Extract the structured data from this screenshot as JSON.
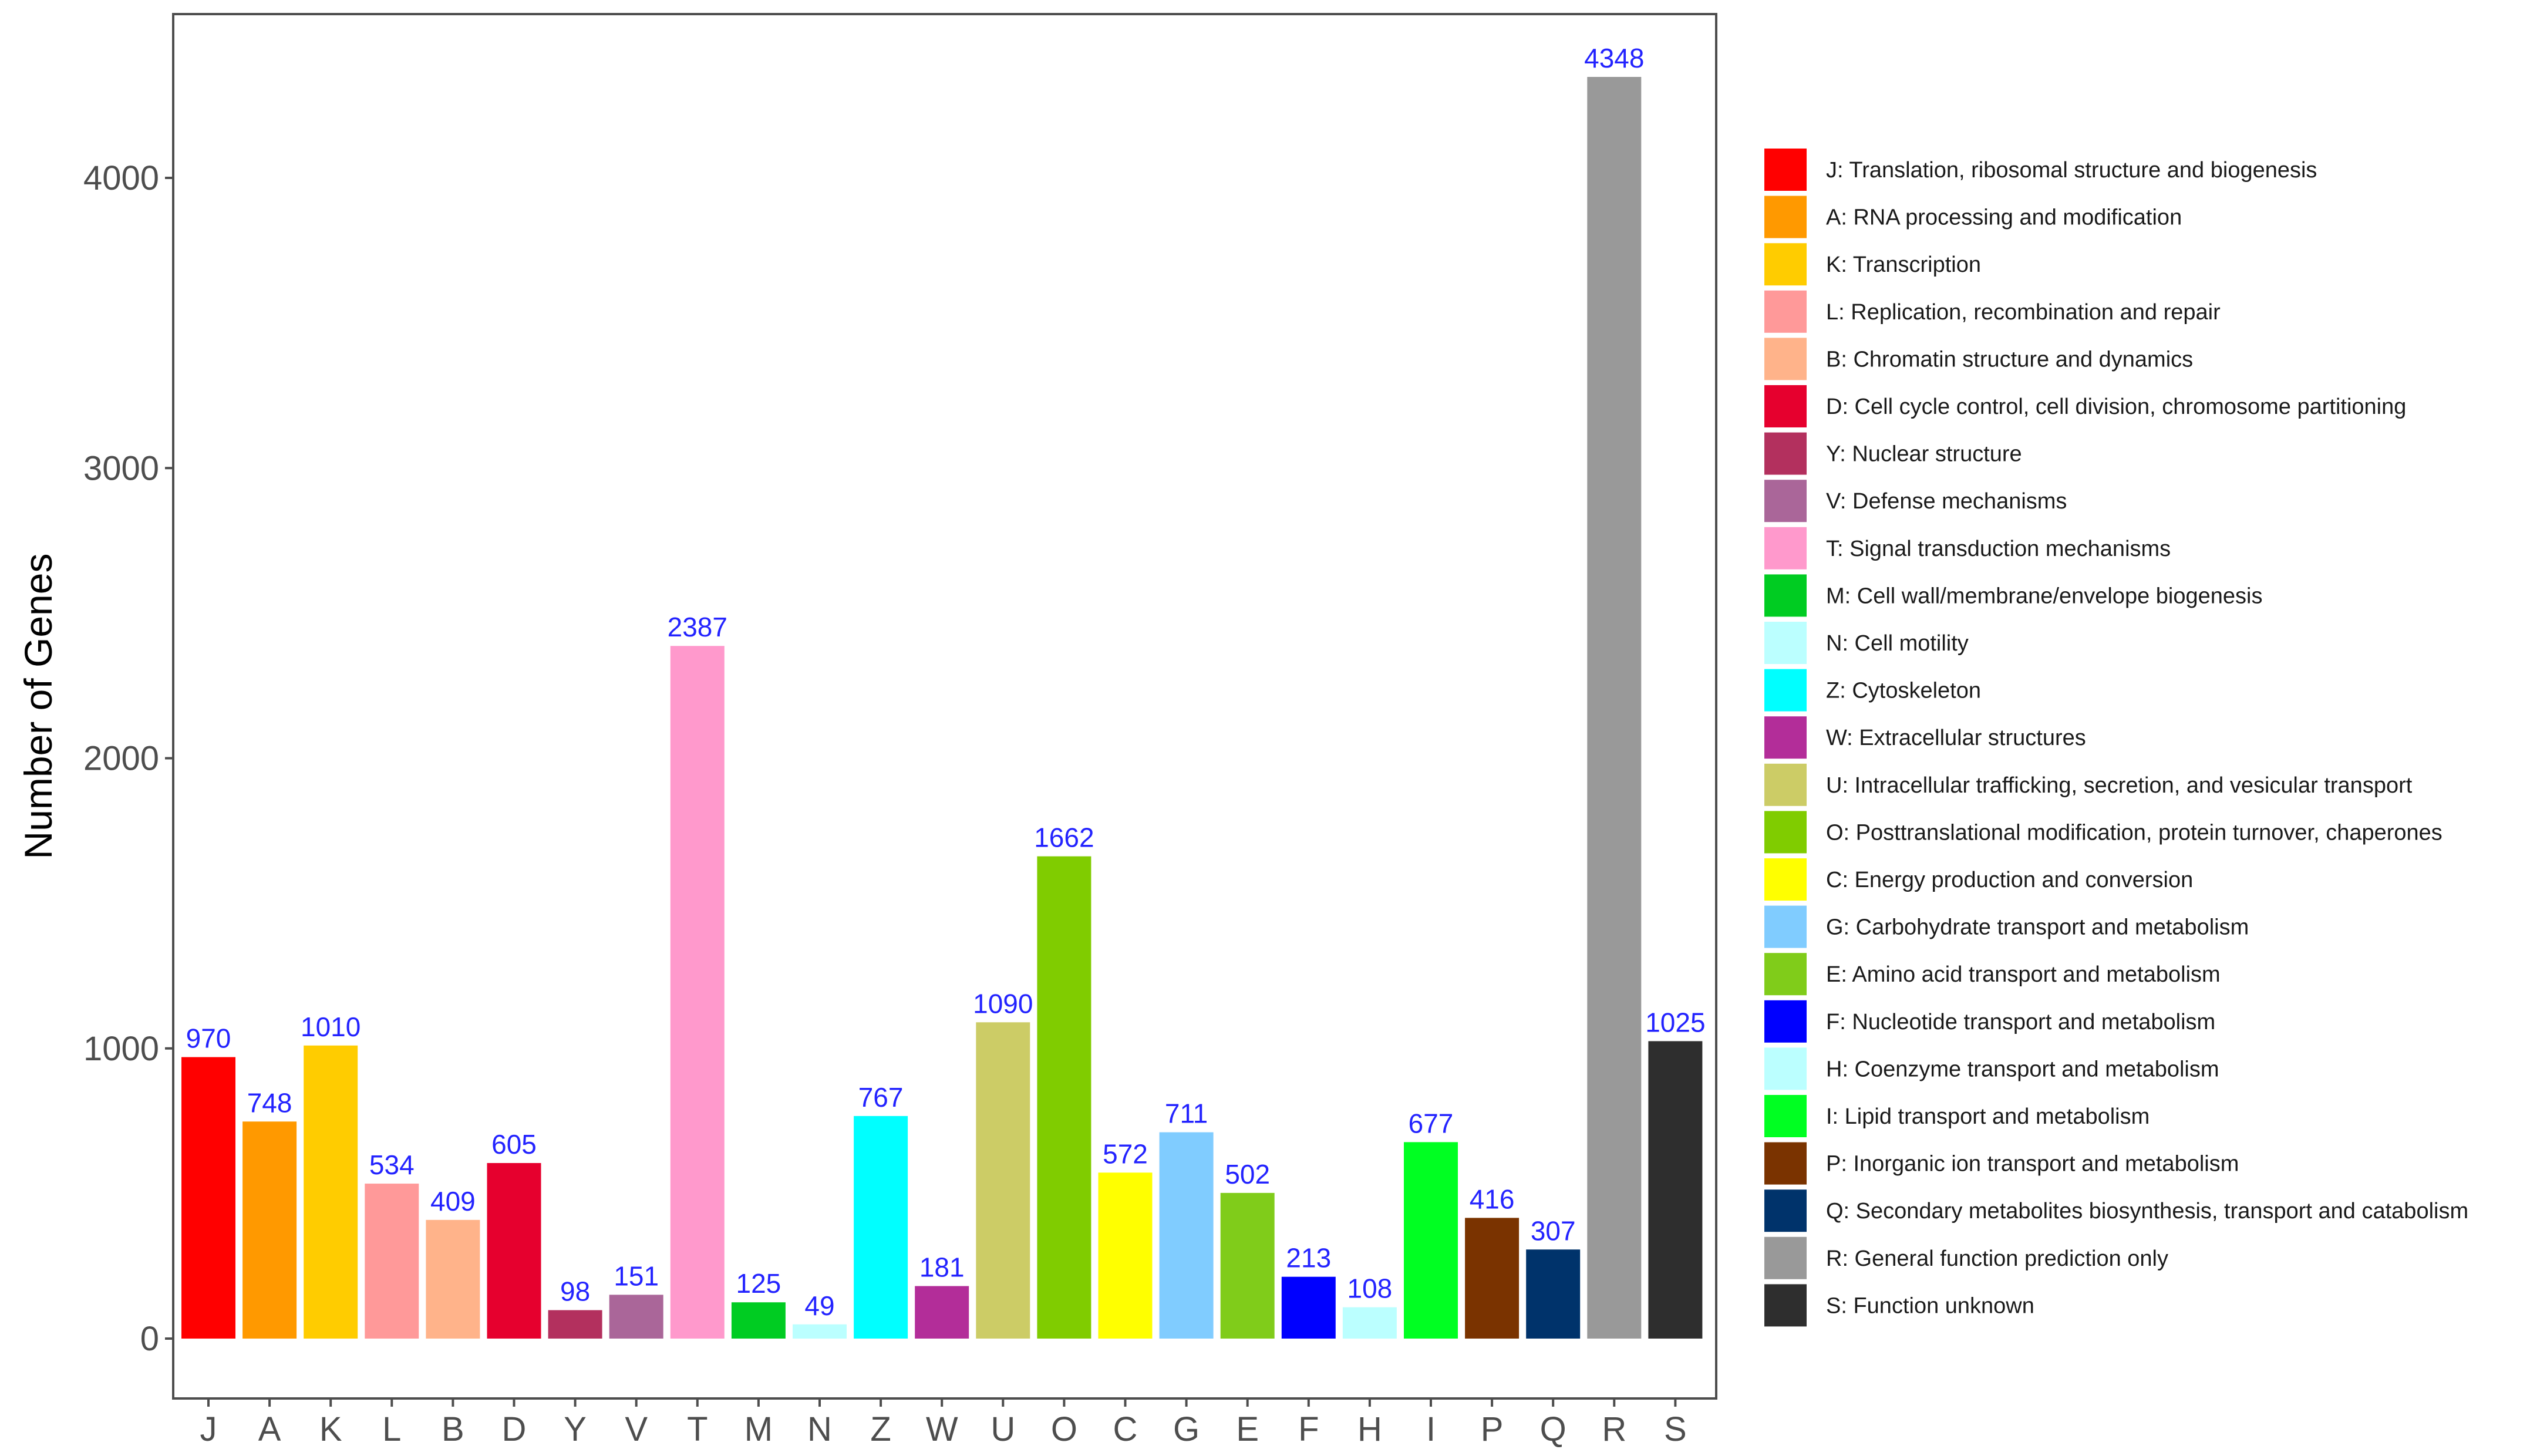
{
  "chart_data": {
    "type": "bar",
    "title": "",
    "xlabel": "",
    "ylabel": "Number of Genes",
    "ylim": [
      0,
      4500
    ],
    "yticks": [
      0,
      1000,
      2000,
      3000,
      4000
    ],
    "grid": false,
    "legend_position": "right",
    "categories": [
      "J",
      "A",
      "K",
      "L",
      "B",
      "D",
      "Y",
      "V",
      "T",
      "M",
      "N",
      "Z",
      "W",
      "U",
      "O",
      "C",
      "G",
      "E",
      "F",
      "H",
      "I",
      "P",
      "Q",
      "R",
      "S"
    ],
    "values": [
      970,
      748,
      1010,
      534,
      409,
      605,
      98,
      151,
      2387,
      125,
      49,
      767,
      181,
      1090,
      1662,
      572,
      711,
      502,
      213,
      108,
      677,
      416,
      307,
      4348,
      1025
    ],
    "colors": [
      "#ff0000",
      "#ff9900",
      "#ffcc00",
      "#ff9999",
      "#ffb38a",
      "#e6002e",
      "#b3305e",
      "#aa6699",
      "#ff99cc",
      "#00cc22",
      "#bbffff",
      "#00ffff",
      "#b32d99",
      "#cccc66",
      "#80cc00",
      "#ffff00",
      "#80ccff",
      "#80cc1a",
      "#0000ff",
      "#bbffff",
      "#00ff22",
      "#7a3300",
      "#00336b",
      "#999999",
      "#2e2e2e"
    ],
    "legend": [
      "J: Translation, ribosomal structure and biogenesis",
      "A: RNA processing and modification",
      "K: Transcription",
      "L: Replication, recombination and repair",
      "B: Chromatin structure and dynamics",
      "D: Cell cycle control, cell division, chromosome partitioning",
      "Y: Nuclear structure",
      "V: Defense mechanisms",
      "T: Signal transduction mechanisms",
      "M: Cell wall/membrane/envelope biogenesis",
      "N: Cell motility",
      "Z: Cytoskeleton",
      "W: Extracellular structures",
      "U: Intracellular trafficking, secretion, and vesicular transport",
      "O: Posttranslational modification, protein turnover, chaperones",
      "C: Energy production and conversion",
      "G: Carbohydrate transport and metabolism",
      "E: Amino acid transport and metabolism",
      "F: Nucleotide transport and metabolism",
      "H: Coenzyme transport and metabolism",
      "I: Lipid transport and metabolism",
      "P: Inorganic ion transport and metabolism",
      "Q: Secondary metabolites biosynthesis, transport and catabolism",
      "R: General function prediction only",
      "S: Function unknown"
    ]
  }
}
